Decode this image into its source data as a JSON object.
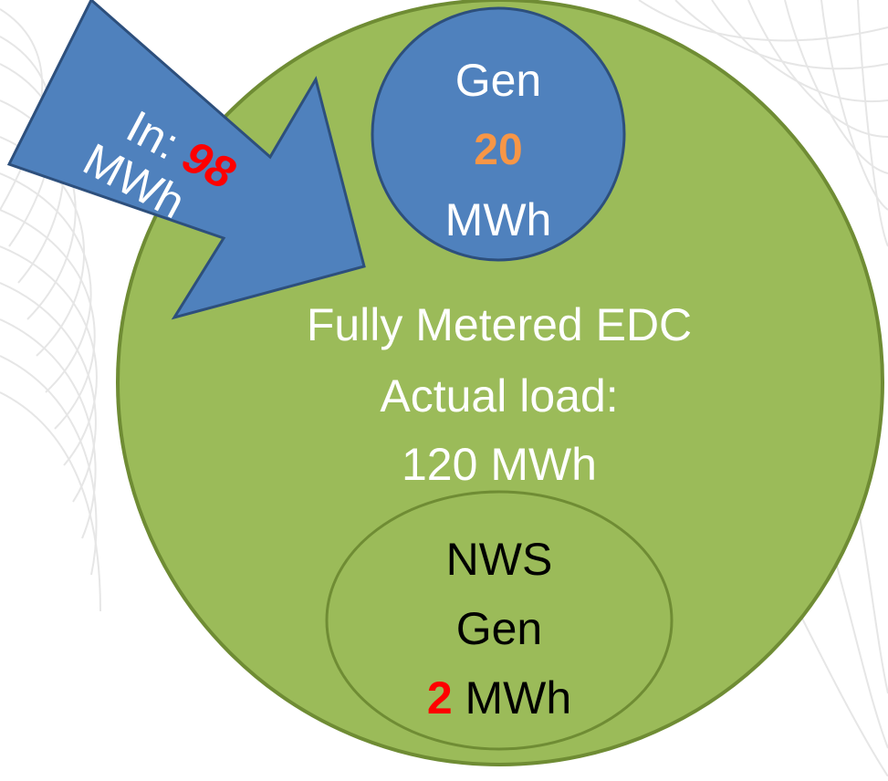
{
  "colors": {
    "background_wave": "#e4e4e4",
    "edc_fill": "#9bbb59",
    "edc_stroke": "#6f8c34",
    "gen_fill": "#4f81bd",
    "gen_stroke": "#2d4f7c",
    "nws_fill": "#9bbb59",
    "nws_stroke": "#6f8c34",
    "arrow_fill": "#4f81bd",
    "arrow_stroke": "#2d4f7c",
    "text_white": "#ffffff",
    "text_black": "#000000",
    "value_orange": "#f79646",
    "value_red": "#ff0000"
  },
  "edc": {
    "line1": "Fully Metered EDC",
    "line2": "Actual load:",
    "load_value": "120",
    "load_unit": " MWh"
  },
  "gen": {
    "label": "Gen",
    "value": "20",
    "unit": "MWh"
  },
  "nws": {
    "line1": "NWS",
    "line2": "Gen",
    "value": "2",
    "unit": " MWh"
  },
  "inflow": {
    "label": "In: ",
    "value": "98",
    "unit": "MWh"
  }
}
